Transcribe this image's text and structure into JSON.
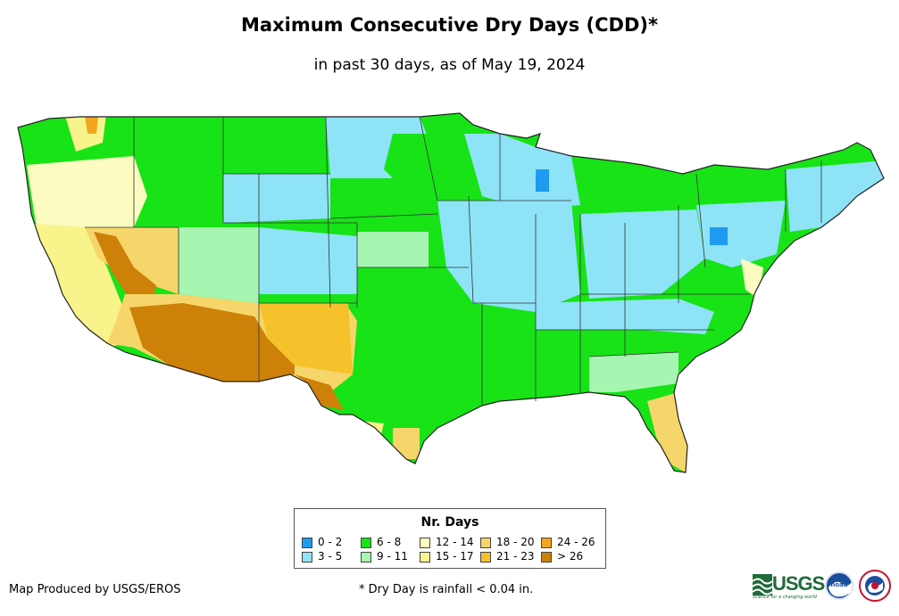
{
  "title": "Maximum Consecutive Dry Days (CDD)*",
  "subtitle": "in past 30 days, as of May 19, 2024",
  "legend": {
    "title": "Nr. Days",
    "items": [
      {
        "label": "0 - 2",
        "color": "#1e9bf0"
      },
      {
        "label": "3 - 5",
        "color": "#8fe3f6"
      },
      {
        "label": "6 - 8",
        "color": "#17e317"
      },
      {
        "label": "9 - 11",
        "color": "#a6f5b0"
      },
      {
        "label": "12 - 14",
        "color": "#fcfcc0"
      },
      {
        "label": "15 - 17",
        "color": "#f8f38a"
      },
      {
        "label": "18 - 20",
        "color": "#f6d66a"
      },
      {
        "label": "21 - 23",
        "color": "#f6c22c"
      },
      {
        "label": "24 - 26",
        "color": "#f1a61e"
      },
      {
        "label": "> 26",
        "color": "#cd8109"
      }
    ]
  },
  "credit": "Map Produced by USGS/EROS",
  "footnote": "* Dry Day is rainfall < 0.04 in.",
  "logos": {
    "usgs": "USGS",
    "usgs_tagline": "science for a changing world",
    "noaa": "noaa"
  }
}
